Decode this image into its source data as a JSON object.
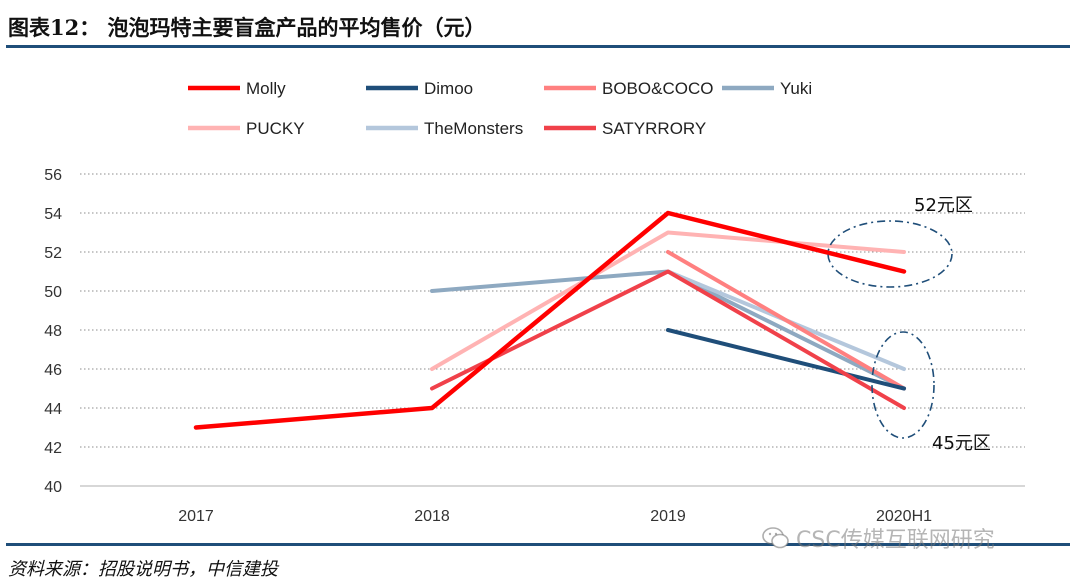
{
  "header": {
    "title": "图表12： 泡泡玛特主要盲盒产品的平均售价（元）"
  },
  "footer": {
    "source": "资料来源：招股说明书，中信建投",
    "watermark": "CSC传媒互联网研究"
  },
  "chart_data": {
    "type": "line",
    "title": "图表12： 泡泡玛特主要盲盒产品的平均售价（元）",
    "xlabel": "",
    "ylabel": "",
    "x": [
      "2017",
      "2018",
      "2019",
      "2020H1"
    ],
    "ylim": [
      40,
      56
    ],
    "yticks": [
      40,
      42,
      44,
      46,
      48,
      50,
      52,
      54,
      56
    ],
    "grid": "horizontal-dotted",
    "legend_position": "top",
    "series": [
      {
        "name": "Molly",
        "color": "#ff0000",
        "values": [
          43,
          44,
          54,
          51
        ]
      },
      {
        "name": "Dimoo",
        "color": "#1f4e79",
        "values": [
          null,
          null,
          48,
          45
        ]
      },
      {
        "name": "BOBO&COCO",
        "color": "#ff8080",
        "values": [
          null,
          null,
          52,
          45
        ]
      },
      {
        "name": "Yuki",
        "color": "#8ea9c1",
        "values": [
          null,
          50,
          51,
          45
        ]
      },
      {
        "name": "PUCKY",
        "color": "#ffb3b3",
        "values": [
          null,
          46,
          53,
          52
        ]
      },
      {
        "name": "TheMonsters",
        "color": "#b4c7dc",
        "values": [
          null,
          null,
          51,
          46
        ]
      },
      {
        "name": "SATYRRORY",
        "color": "#f0414a",
        "values": [
          null,
          45,
          51,
          44
        ]
      }
    ],
    "annotations": [
      {
        "text": "52元区",
        "target": "2020H1 around 52"
      },
      {
        "text": "45元区",
        "target": "2020H1 around 45"
      }
    ]
  }
}
